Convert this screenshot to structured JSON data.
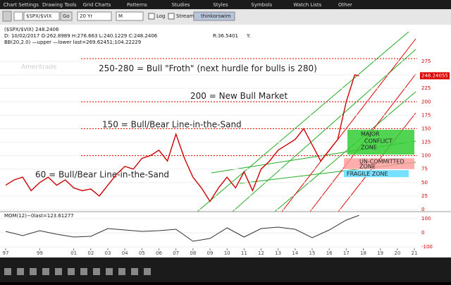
{
  "menu": [
    "Chart Settings",
    "Drawing Tools",
    "Grid Charts",
    "Patterns",
    "Studies",
    "Styles",
    "Symbols",
    "Watch Lists",
    "Other"
  ],
  "toolbar": {
    "symbol": "$SPX/$VIX",
    "go": "Go",
    "period": "20 Yr",
    "interval": "M",
    "log": "Log",
    "stream": "Stream",
    "button": "thinkorswim"
  },
  "chart": {
    "type": "line",
    "header": "($SPX/$VIX)  248.2406",
    "ohlc": "D: 10/02/2017  O:262.8989  H:276.663  L:240.1229  C:248.2406",
    "ratio": "R:36.5401",
    "ratio_y": "Y:",
    "bb": "BB(20,2.0) —upper —lower last=269.62451;104.22229",
    "watermark": "Ameritrade",
    "color": "#cc0000",
    "x": [
      1997,
      1997.5,
      1998,
      1998.5,
      1999,
      1999.5,
      2000,
      2000.5,
      2001,
      2001.5,
      2002,
      2002.5,
      2003,
      2003.5,
      2004,
      2004.5,
      2005,
      2005.5,
      2006,
      2006.5,
      2007,
      2007.5,
      2008,
      2008.5,
      2009,
      2009.5,
      2010,
      2010.5,
      2011,
      2011.5,
      2012,
      2012.5,
      2013,
      2013.5,
      2014,
      2014.5,
      2015,
      2015.5,
      2016,
      2016.5,
      2017,
      2017.5,
      2017.75
    ],
    "values": [
      45,
      55,
      60,
      35,
      50,
      60,
      45,
      55,
      40,
      35,
      38,
      25,
      45,
      65,
      80,
      75,
      95,
      100,
      110,
      90,
      140,
      95,
      60,
      40,
      15,
      40,
      60,
      40,
      70,
      35,
      75,
      90,
      110,
      120,
      130,
      150,
      120,
      90,
      110,
      130,
      200,
      250,
      248.2406
    ],
    "xlim": [
      1996.7,
      2021.3
    ],
    "xticks": [
      {
        "value": 1997,
        "label": "97"
      },
      {
        "value": 1999,
        "label": "99"
      },
      {
        "value": 2001,
        "label": "01"
      },
      {
        "value": 2002,
        "label": "02"
      },
      {
        "value": 2003,
        "label": "03"
      },
      {
        "value": 2004,
        "label": "04"
      },
      {
        "value": 2005,
        "label": "05"
      },
      {
        "value": 2006,
        "label": "06"
      },
      {
        "value": 2007,
        "label": "07"
      },
      {
        "value": 2008,
        "label": "08"
      },
      {
        "value": 2009,
        "label": "09"
      },
      {
        "value": 2010,
        "label": "10"
      },
      {
        "value": 2011,
        "label": "11"
      },
      {
        "value": 2012,
        "label": "12"
      },
      {
        "value": 2013,
        "label": "13"
      },
      {
        "value": 2014,
        "label": "14"
      },
      {
        "value": 2015,
        "label": "15"
      },
      {
        "value": 2016,
        "label": "16"
      },
      {
        "value": 2017,
        "label": "17"
      },
      {
        "value": 2018,
        "label": "18"
      },
      {
        "value": 2019,
        "label": "19"
      },
      {
        "value": 2020,
        "label": "20"
      },
      {
        "value": 2021,
        "label": "21"
      }
    ],
    "ylim": [
      -4,
      330
    ],
    "yticks": [
      0,
      25,
      50,
      75,
      100,
      125,
      150,
      175,
      200,
      225,
      250,
      275
    ],
    "reference_lines": [
      280,
      200,
      150,
      100
    ],
    "last_value": 248.24055,
    "last_label": "248.24055",
    "annotations": [
      "250-280 = Bull \"Froth\" (next hurdle for bulls is 280)",
      "200 = New Bull Market",
      "150 = Bull/Bear Line-in-the-Sand",
      "60 = Bull/Bear Line-in-the-Sand"
    ],
    "zones": [
      "MAJOR",
      "CONFLICT",
      "ZONE",
      "UN-COMMITTED",
      "ZONE",
      "FRAGILE ZONE"
    ],
    "mom": {
      "title": "MOM(12)−0last=123.61277",
      "ylim": [
        -110,
        110
      ],
      "yticks": [
        100,
        0,
        -100
      ],
      "x": [
        1997,
        1998,
        1999,
        2000,
        2001,
        2002,
        2003,
        2004,
        2005,
        2006,
        2007,
        2008,
        2009,
        2010,
        2011,
        2012,
        2013,
        2014,
        2015,
        2016,
        2017,
        2017.75
      ],
      "values": [
        10,
        -20,
        15,
        -10,
        -30,
        -25,
        30,
        20,
        10,
        15,
        25,
        -60,
        -40,
        35,
        -30,
        30,
        40,
        25,
        -35,
        20,
        90,
        123.61277
      ]
    }
  }
}
